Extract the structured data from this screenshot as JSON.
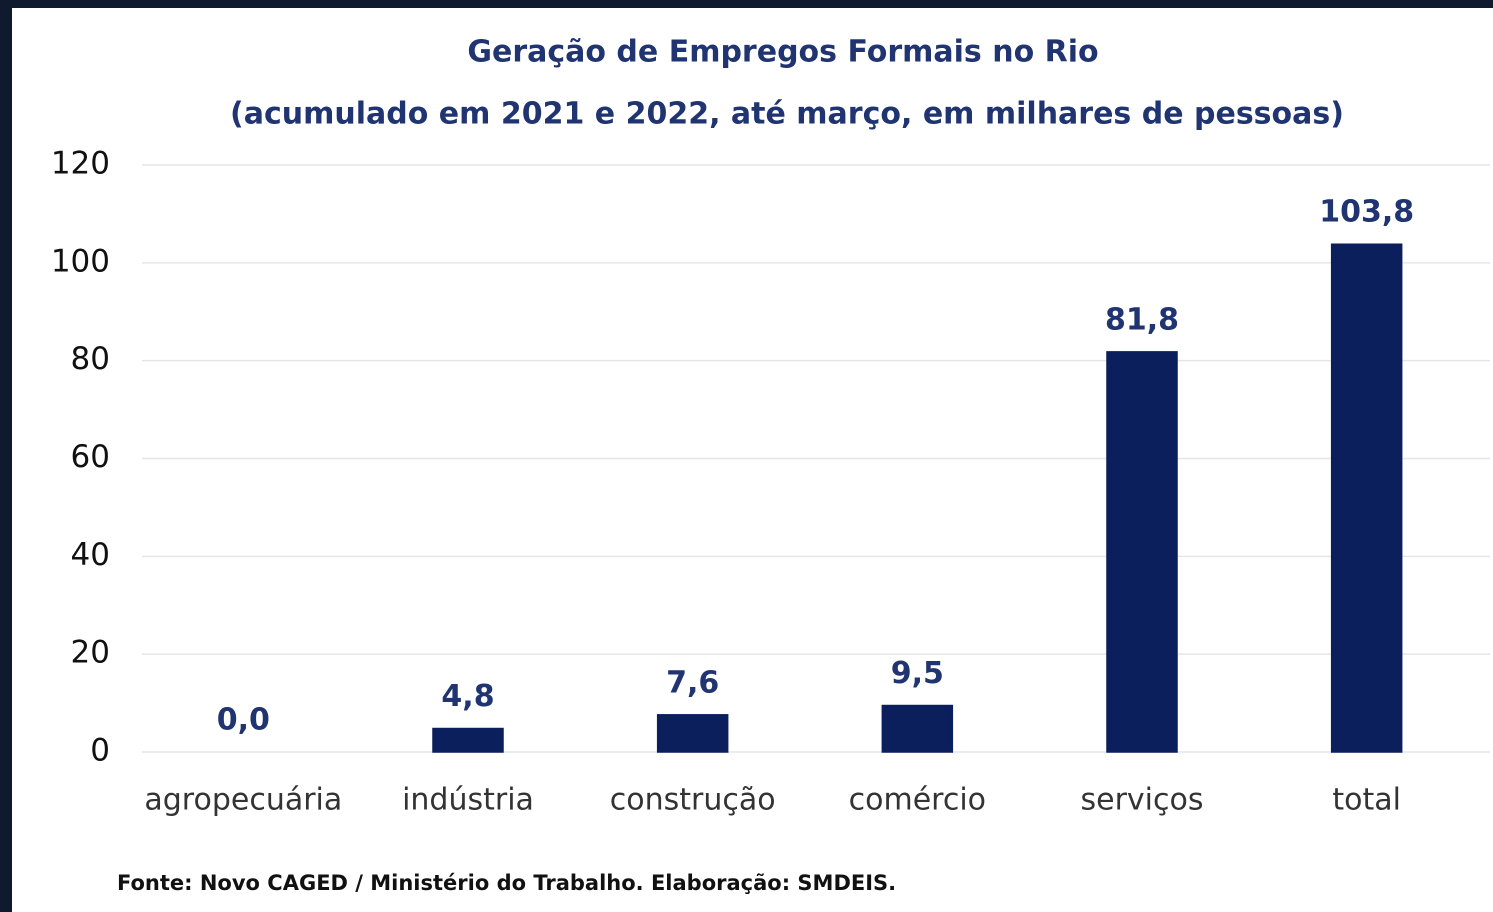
{
  "chart_data": {
    "type": "bar",
    "title": "Geração de Empregos Formais no Rio",
    "subtitle": "(acumulado em 2021 e 2022, até março, em milhares de pessoas)",
    "categories": [
      "agropecuária",
      "indústria",
      "construção",
      "comércio",
      "serviços",
      "total"
    ],
    "values": [
      0.0,
      4.8,
      7.6,
      9.5,
      81.8,
      103.8
    ],
    "value_labels": [
      "0,0",
      "4,8",
      "7,6",
      "9,5",
      "81,8",
      "103,8"
    ],
    "color": "#0b1f5c",
    "ylim": [
      0,
      120
    ],
    "yticks": [
      0,
      20,
      40,
      60,
      80,
      100,
      120
    ],
    "grid": true,
    "source": "Fonte: Novo CAGED / Ministério do Trabalho. Elaboração: SMDEIS."
  }
}
